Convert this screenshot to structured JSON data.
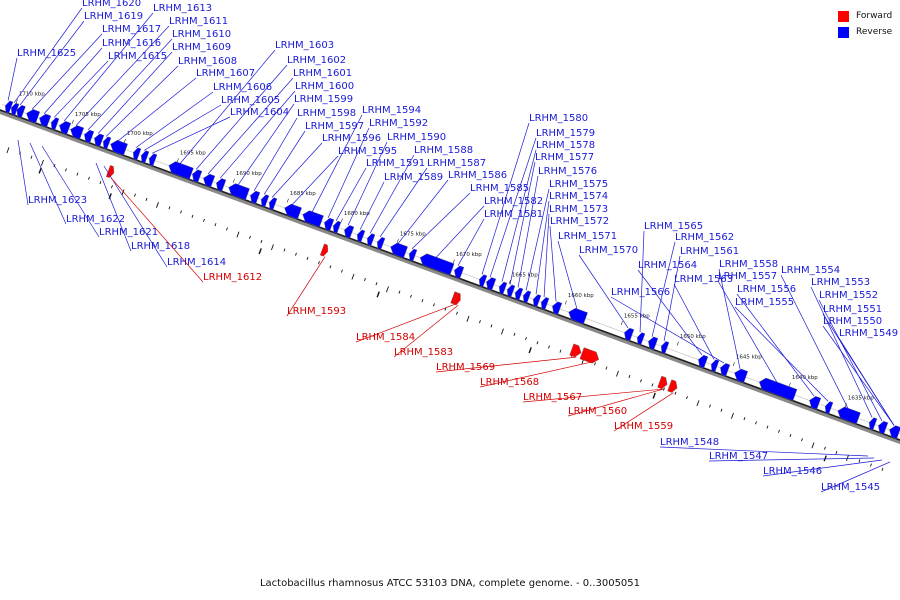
{
  "legend": {
    "forward_label": "Forward",
    "reverse_label": "Reverse",
    "forward_color": "#ff0000",
    "reverse_color": "#0000ff"
  },
  "caption": "Lactobacillus rhamnosus ATCC 53103 DNA, complete genome. - 0..3005051",
  "scale_ticks": [
    "1710 kbp",
    "1705 kbp",
    "1700 kbp",
    "1695 kbp",
    "1690 kbp",
    "1685 kbp",
    "1680 kbp",
    "1675 kbp",
    "1670 kbp",
    "1665 kbp",
    "1660 kbp",
    "1655 kbp",
    "1650 kbp",
    "1645 kbp",
    "1640 kbp",
    "1635 kbp"
  ],
  "reverse_genes_top": [
    "LRHM_1625",
    "LRHM_1620",
    "LRHM_1619",
    "LRHM_1617",
    "LRHM_1616",
    "LRHM_1615",
    "LRHM_1613",
    "LRHM_1611",
    "LRHM_1610",
    "LRHM_1609",
    "LRHM_1608",
    "LRHM_1607",
    "LRHM_1606",
    "LRHM_1605",
    "LRHM_1604",
    "LRHM_1603",
    "LRHM_1602",
    "LRHM_1601",
    "LRHM_1600",
    "LRHM_1599",
    "LRHM_1598",
    "LRHM_1597",
    "LRHM_1596",
    "LRHM_1595",
    "LRHM_1594",
    "LRHM_1592",
    "LRHM_1591",
    "LRHM_1590",
    "LRHM_1589",
    "LRHM_1588",
    "LRHM_1587",
    "LRHM_1586",
    "LRHM_1585",
    "LRHM_1582",
    "LRHM_1581",
    "LRHM_1580",
    "LRHM_1579",
    "LRHM_1578",
    "LRHM_1577",
    "LRHM_1576",
    "LRHM_1575",
    "LRHM_1574",
    "LRHM_1573",
    "LRHM_1572",
    "LRHM_1571",
    "LRHM_1570",
    "LRHM_1565",
    "LRHM_1562",
    "LRHM_1561",
    "LRHM_1564",
    "LRHM_1563",
    "LRHM_1566",
    "LRHM_1558",
    "LRHM_1557",
    "LRHM_1556",
    "LRHM_1555",
    "LRHM_1554",
    "LRHM_1553",
    "LRHM_1552",
    "LRHM_1551",
    "LRHM_1550",
    "LRHM_1549"
  ],
  "reverse_genes_bottom": [
    "LRHM_1623",
    "LRHM_1622",
    "LRHM_1621",
    "LRHM_1618",
    "LRHM_1614",
    "LRHM_1548",
    "LRHM_1547",
    "LRHM_1546",
    "LRHM_1545"
  ],
  "forward_genes": [
    "LRHM_1612",
    "LRHM_1593",
    "LRHM_1584",
    "LRHM_1583",
    "LRHM_1569",
    "LRHM_1568",
    "LRHM_1567",
    "LRHM_1560",
    "LRHM_1559"
  ]
}
